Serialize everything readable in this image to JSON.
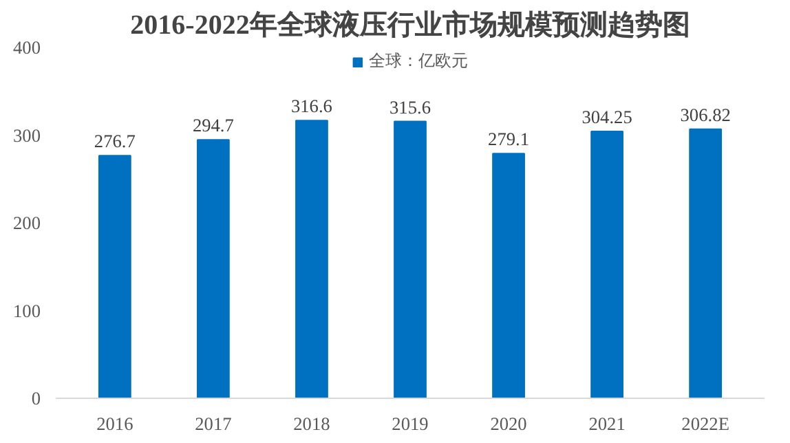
{
  "chart_data": {
    "type": "bar",
    "title": "2016-2022年全球液压行业市场规模预测趋势图",
    "categories": [
      "2016",
      "2017",
      "2018",
      "2019",
      "2020",
      "2021",
      "2022E"
    ],
    "series": [
      {
        "name": "全球：亿欧元",
        "color": "#0070c0",
        "values": [
          276.7,
          294.7,
          316.6,
          315.6,
          279.1,
          304.25,
          306.82
        ]
      }
    ],
    "ylim": [
      0,
      400
    ],
    "yticks": [
      0,
      100,
      200,
      300,
      400
    ],
    "grid": false,
    "legend": "top",
    "data_labels": true
  }
}
